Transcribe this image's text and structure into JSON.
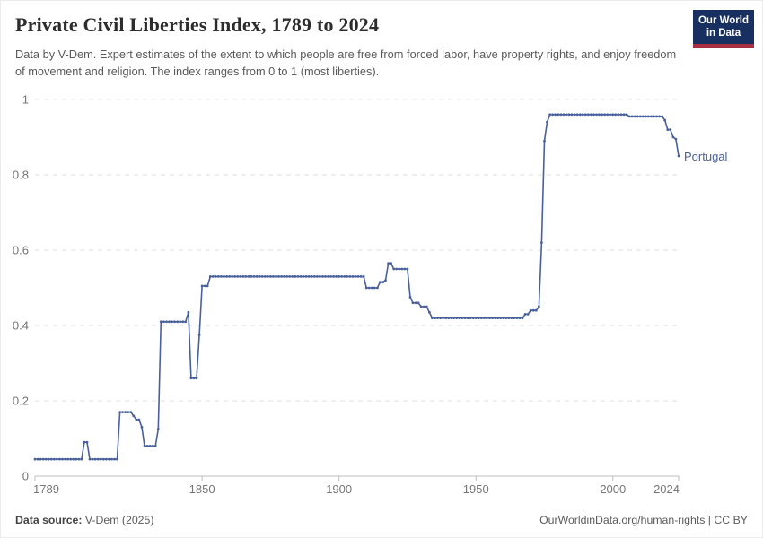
{
  "header": {
    "title": "Private Civil Liberties Index, 1789 to 2024",
    "subtitle": "Data by V-Dem. Expert estimates of the extent to which people are free from forced labor, have property rights, and enjoy freedom of movement and religion. The index ranges from 0 to 1 (most liberties).",
    "logo": {
      "line1": "Our World",
      "line2": "in Data"
    }
  },
  "chart_data": {
    "type": "line",
    "title": "Private Civil Liberties Index, 1789 to 2024",
    "xlabel": "",
    "ylabel": "",
    "xlim": [
      1789,
      2024
    ],
    "ylim": [
      0,
      1
    ],
    "x_ticks": [
      1789,
      1850,
      1900,
      1950,
      2000,
      2024
    ],
    "y_ticks": [
      0,
      0.2,
      0.4,
      0.6,
      0.8,
      1
    ],
    "grid": "horizontal dashed gridlines, y=0 solid axis",
    "legend_position": "end-of-line label",
    "marker": "small dot at every yearly observation",
    "series": [
      {
        "name": "Portugal",
        "color": "#48609c",
        "interpolation": "value holds from listed year until the next listed change-point (yearly data)",
        "steps": [
          [
            1789,
            0.045
          ],
          [
            1807,
            0.09
          ],
          [
            1809,
            0.045
          ],
          [
            1820,
            0.17
          ],
          [
            1825,
            0.16
          ],
          [
            1826,
            0.15
          ],
          [
            1828,
            0.13
          ],
          [
            1829,
            0.08
          ],
          [
            1834,
            0.125
          ],
          [
            1835,
            0.41
          ],
          [
            1845,
            0.435
          ],
          [
            1846,
            0.26
          ],
          [
            1849,
            0.375
          ],
          [
            1850,
            0.505
          ],
          [
            1853,
            0.53
          ],
          [
            1910,
            0.5
          ],
          [
            1915,
            0.515
          ],
          [
            1917,
            0.52
          ],
          [
            1918,
            0.565
          ],
          [
            1920,
            0.55
          ],
          [
            1926,
            0.475
          ],
          [
            1927,
            0.46
          ],
          [
            1930,
            0.45
          ],
          [
            1933,
            0.435
          ],
          [
            1934,
            0.42
          ],
          [
            1968,
            0.43
          ],
          [
            1970,
            0.44
          ],
          [
            1973,
            0.45
          ],
          [
            1974,
            0.62
          ],
          [
            1975,
            0.89
          ],
          [
            1976,
            0.94
          ],
          [
            1977,
            0.96
          ],
          [
            2006,
            0.955
          ],
          [
            2019,
            0.945
          ],
          [
            2020,
            0.92
          ],
          [
            2022,
            0.9
          ],
          [
            2023,
            0.895
          ],
          [
            2024,
            0.85
          ]
        ]
      }
    ],
    "end_label": "Portugal"
  },
  "colors": {
    "line": "#48609c",
    "grid": "#dedede",
    "axis": "#bdbdbd",
    "tick_text": "#757575",
    "logo_bg": "#18305f",
    "logo_bar": "#a82f42"
  },
  "footer": {
    "source_label": "Data source:",
    "source_value": " V-Dem (2025)",
    "credit": "OurWorldinData.org/human-rights | CC BY"
  }
}
